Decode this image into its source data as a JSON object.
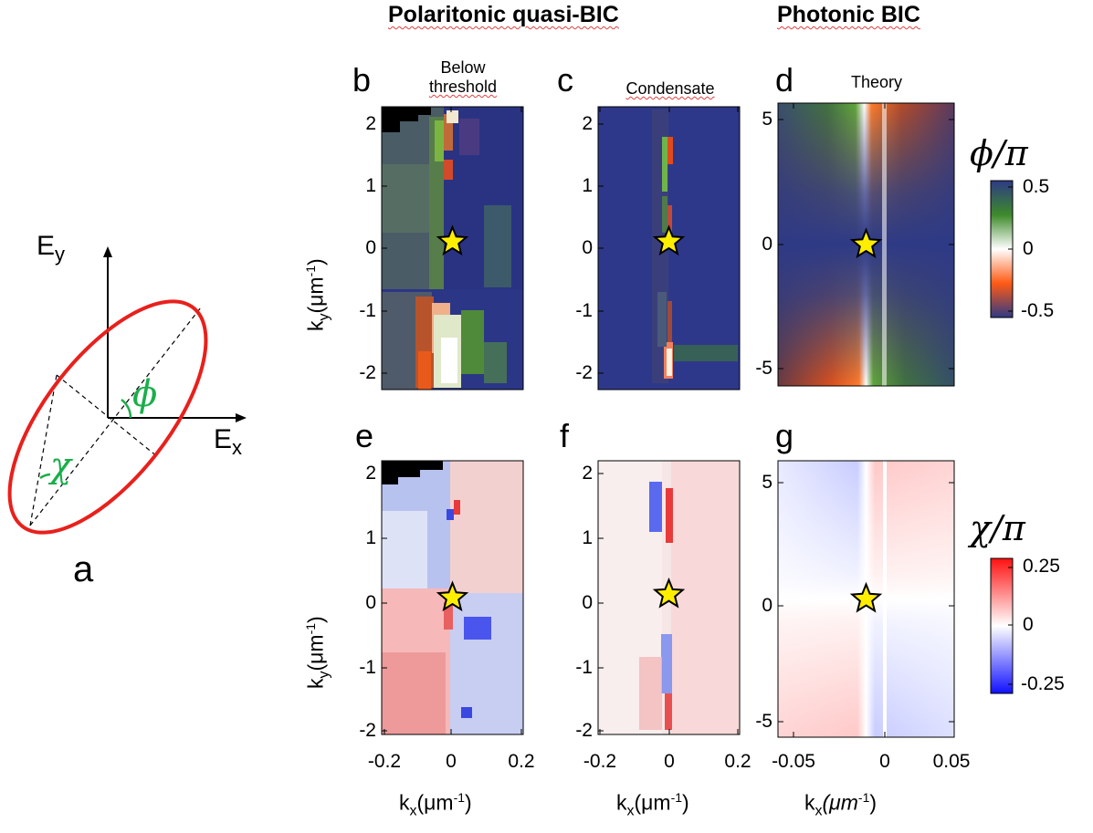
{
  "headings": {
    "left": "Polaritonic quasi-BIC",
    "right": "Photonic BIC"
  },
  "panel_letters": {
    "a": "a",
    "b": "b",
    "c": "c",
    "d": "d",
    "e": "e",
    "f": "f",
    "g": "g"
  },
  "subtitles": {
    "b_line1": "Below",
    "b_line2": "threshold",
    "c": "Condensate",
    "d": "Theory"
  },
  "ellipse_diagram": {
    "ey_label": "E",
    "ey_sub": "y",
    "ex_label": "E",
    "ex_sub": "x",
    "phi": "ϕ",
    "chi": "χ",
    "ellipse_color": "#e8201c",
    "angle_color": "#1aae4a"
  },
  "colorbars": {
    "phi": {
      "symbol": "ϕ/π",
      "ticks": [
        "0.5",
        "0",
        "-0.5"
      ],
      "colors": [
        "#2e3a86",
        "#3d8a2a",
        "#ffffff",
        "#ff5a14",
        "#2e3a86"
      ]
    },
    "chi": {
      "symbol": "χ/π",
      "ticks": [
        "0.25",
        "0",
        "-0.25"
      ],
      "colors": [
        "#ff1010",
        "#ffffff",
        "#1010ff"
      ]
    }
  },
  "axes": {
    "ky_ticks_exp": [
      "2",
      "1",
      "0",
      "-1",
      "-2"
    ],
    "ky_ticks_theory": [
      "5",
      "0",
      "-5"
    ],
    "kx_ticks_exp": [
      "-0.2",
      "0",
      "0.2"
    ],
    "kx_ticks_theory": [
      "-0.05",
      "0",
      "0.05"
    ],
    "ylabel_main": "k",
    "ylabel_sub": "y",
    "ylabel_unit": "(μm",
    "ylabel_exp": "-1",
    "ylabel_close": ")",
    "xlabel_main": "k",
    "xlabel_sub": "x",
    "xlabel_unit": "(μm",
    "xlabel_exp": "-1",
    "xlabel_close": ")"
  },
  "chart_data": [
    {
      "panel": "b",
      "type": "heatmap",
      "quantity": "ϕ/π",
      "x_range": [
        -0.2,
        0.2
      ],
      "y_range": [
        -2.2,
        2.2
      ],
      "xticks": [
        -0.2,
        0,
        0.2
      ],
      "yticks": [
        -2,
        -1,
        0,
        1,
        2
      ],
      "color_range": [
        -0.5,
        0.5
      ],
      "marker": {
        "shape": "star",
        "x": 0.0,
        "y": 0.1,
        "color": "#ffee00"
      }
    },
    {
      "panel": "c",
      "type": "heatmap",
      "quantity": "ϕ/π",
      "x_range": [
        -0.2,
        0.2
      ],
      "y_range": [
        -2.2,
        2.2
      ],
      "color_range": [
        -0.5,
        0.5
      ],
      "marker": {
        "shape": "star",
        "x": 0.0,
        "y": 0.1,
        "color": "#ffee00"
      }
    },
    {
      "panel": "d",
      "type": "heatmap",
      "quantity": "ϕ/π",
      "x_range": [
        -0.05,
        0.05
      ],
      "y_range": [
        -5.5,
        5.5
      ],
      "yticks": [
        -5,
        0,
        5
      ],
      "color_range": [
        -0.5,
        0.5
      ],
      "marker": {
        "shape": "star",
        "x": 0.0,
        "y": 0.0,
        "color": "#ffee00"
      }
    },
    {
      "panel": "e",
      "type": "heatmap",
      "quantity": "χ/π",
      "x_range": [
        -0.2,
        0.2
      ],
      "y_range": [
        -2.2,
        2.2
      ],
      "xticks": [
        -0.2,
        0,
        0.2
      ],
      "yticks": [
        -2,
        -1,
        0,
        1,
        2
      ],
      "color_range": [
        -0.25,
        0.25
      ],
      "marker": {
        "shape": "star",
        "x": 0.0,
        "y": 0.0,
        "color": "#ffee00"
      }
    },
    {
      "panel": "f",
      "type": "heatmap",
      "quantity": "χ/π",
      "x_range": [
        -0.2,
        0.2
      ],
      "y_range": [
        -2.2,
        2.2
      ],
      "xticks": [
        -0.2,
        0,
        0.2
      ],
      "color_range": [
        -0.25,
        0.25
      ],
      "marker": {
        "shape": "star",
        "x": 0.0,
        "y": 0.05,
        "color": "#ffee00"
      }
    },
    {
      "panel": "g",
      "type": "heatmap",
      "quantity": "χ/π",
      "x_range": [
        -0.05,
        0.05
      ],
      "y_range": [
        -5.5,
        5.5
      ],
      "xticks": [
        -0.05,
        0,
        0.05
      ],
      "yticks": [
        -5,
        0,
        5
      ],
      "color_range": [
        -0.25,
        0.25
      ],
      "marker": {
        "shape": "star",
        "x": 0.0,
        "y": 0.0,
        "color": "#ffee00"
      }
    }
  ]
}
